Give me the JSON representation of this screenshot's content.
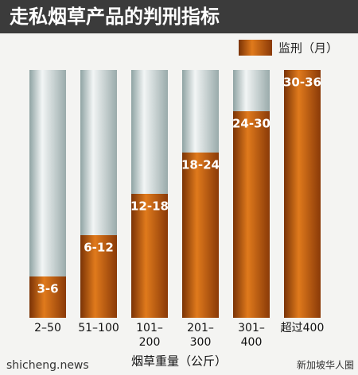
{
  "chart_data": {
    "type": "bar",
    "title": "走私烟草产品的判刑指标",
    "legend": "监刑（月）",
    "x_label": "烟草重量（公斤）",
    "categories": [
      "2–50",
      "51–100",
      "101–200",
      "201–300",
      "301–400",
      "超过400"
    ],
    "values": [
      6,
      12,
      18,
      24,
      30,
      36
    ],
    "value_labels": [
      "3-6",
      "6-12",
      "12-18",
      "18-24",
      "24-30",
      "30-36"
    ],
    "color": "#d4650f",
    "ylim": [
      0,
      36
    ],
    "watermarks": [
      "shicheng.news",
      "新加坡华人圈"
    ]
  }
}
